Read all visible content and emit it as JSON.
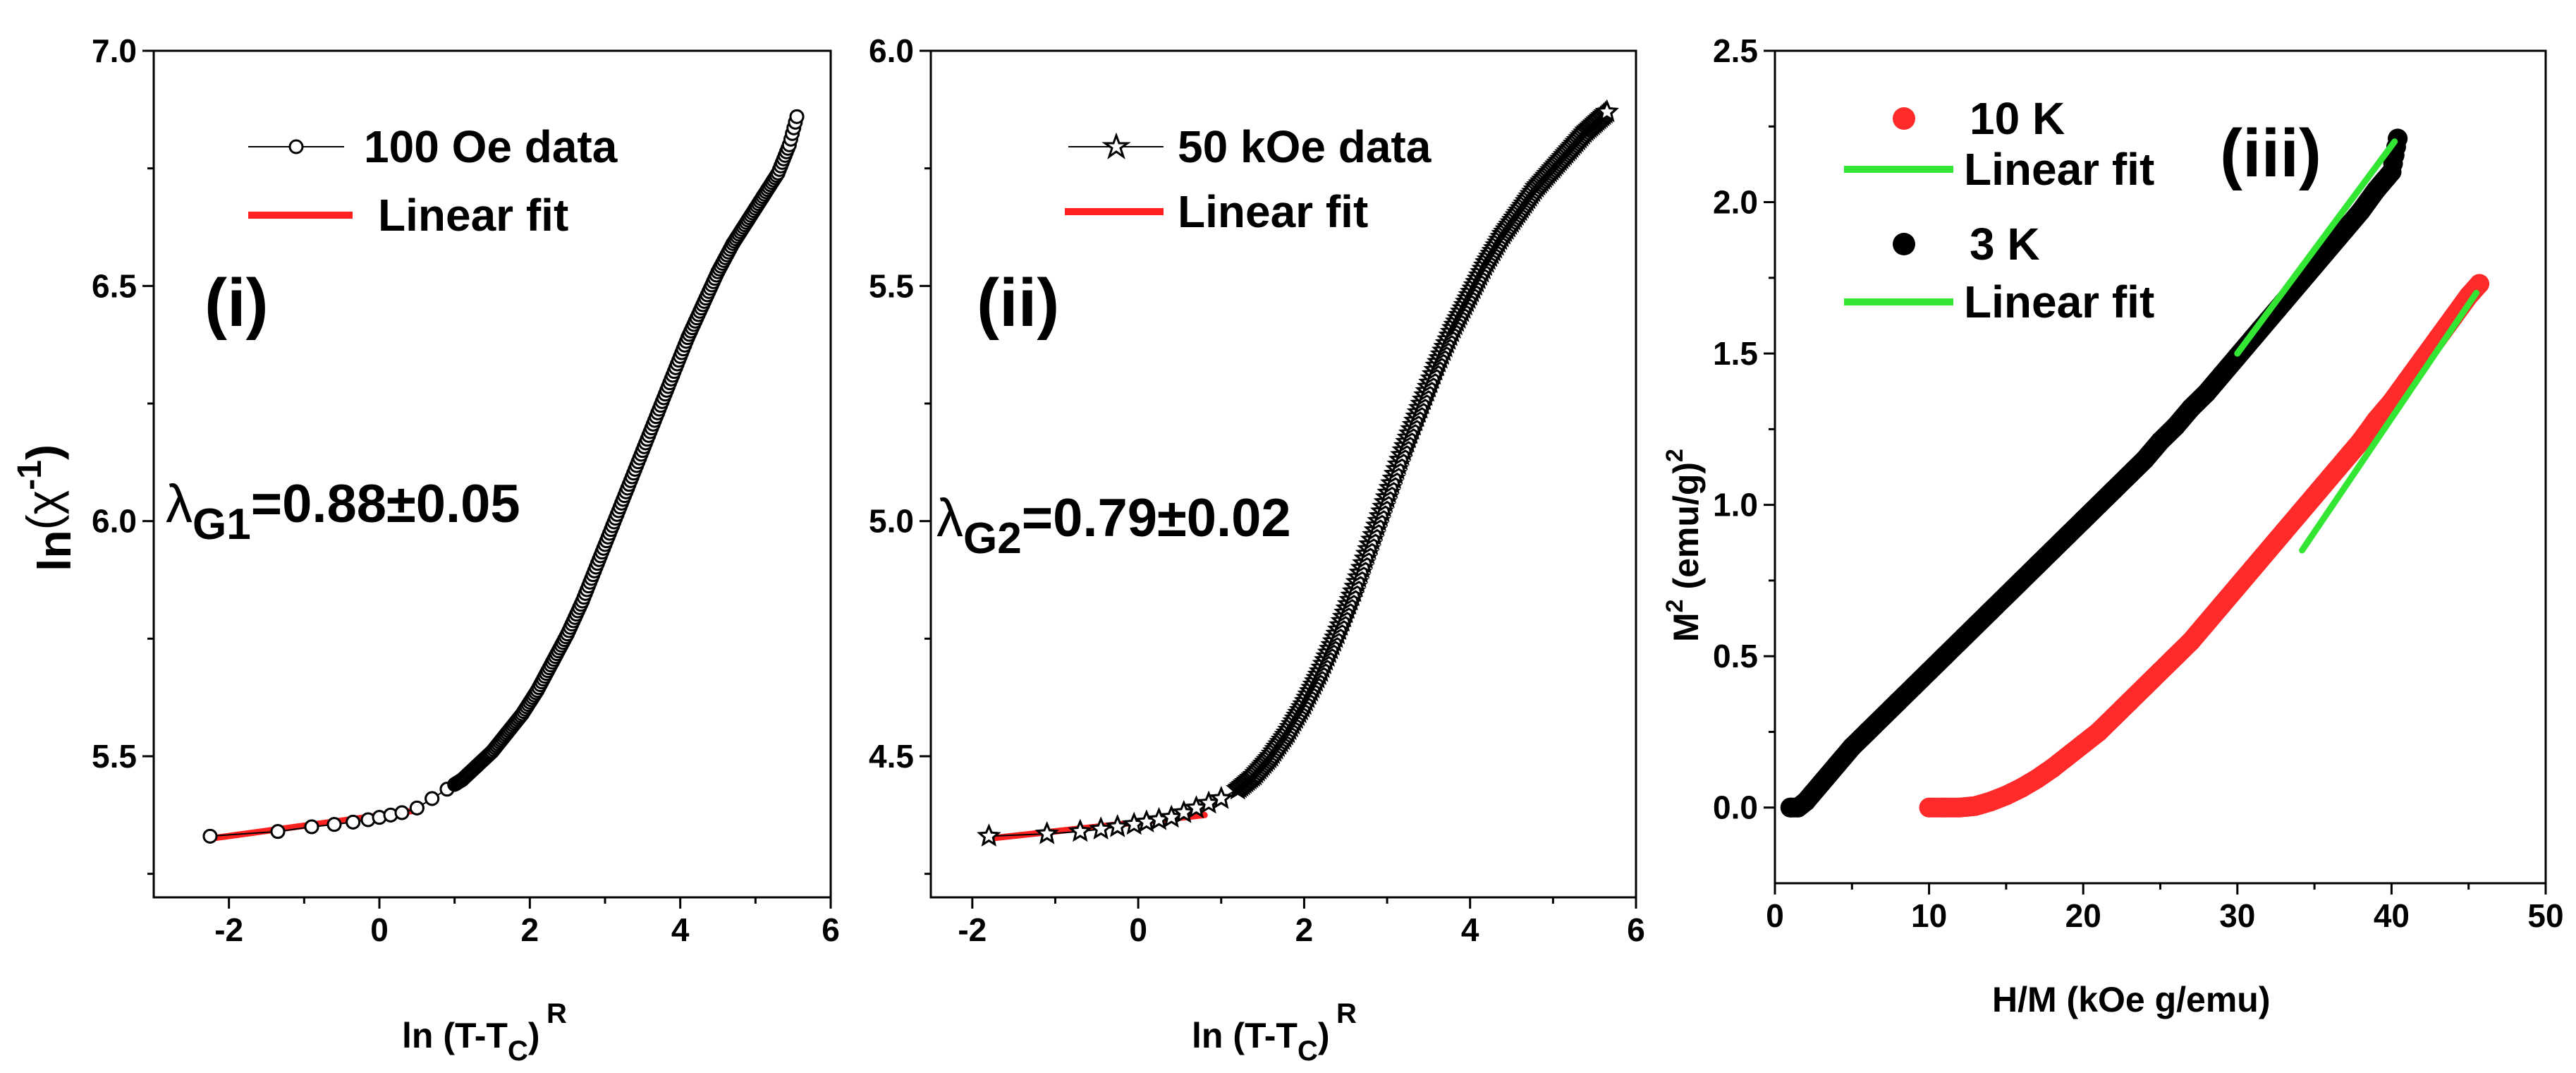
{
  "chart_data": [
    {
      "type": "scatter",
      "panel_label": "(i)",
      "ylabel_main": "ln",
      "ylabel_paren": "(χ",
      "ylabel_sup": "-1",
      "ylabel_close": ")",
      "xlabel_main": "ln (T-T",
      "xlabel_sub": "C",
      "xlabel_sup": "R",
      "xlabel_close": ")",
      "xlim": [
        -3,
        6
      ],
      "ylim": [
        5.2,
        7.0
      ],
      "xticks": [
        -2,
        0,
        2,
        4,
        6
      ],
      "yticks": [
        5.5,
        6.0,
        6.5,
        7.0
      ],
      "xtick_labels": [
        "-2",
        "0",
        "2",
        "4",
        "6"
      ],
      "ytick_labels": [
        "5.5",
        "6.0",
        "6.5",
        "7.0"
      ],
      "legend": [
        {
          "label": "100 Oe data",
          "marker": "open-circle"
        },
        {
          "label": "Linear fit",
          "marker": "line",
          "color": "#ff2020"
        }
      ],
      "annotation_lambda": "λ",
      "annotation_sub": "G1",
      "annotation_value": "=0.88±0.05",
      "series": [
        {
          "name": "100 Oe data",
          "marker": "open-circle",
          "x": [
            -2.25,
            -1.35,
            -0.9,
            -0.6,
            -0.35,
            -0.15,
            0.0,
            0.15,
            0.3,
            0.5,
            0.7,
            0.9,
            1.1,
            1.3,
            1.5,
            1.7,
            1.9,
            2.1,
            2.3,
            2.5,
            2.7,
            2.9,
            3.1,
            3.3,
            3.5,
            3.7,
            3.9,
            4.1,
            4.3,
            4.5,
            4.7,
            4.9,
            5.1,
            5.3,
            5.45,
            5.55
          ],
          "y": [
            5.33,
            5.34,
            5.35,
            5.355,
            5.36,
            5.365,
            5.37,
            5.375,
            5.38,
            5.39,
            5.41,
            5.43,
            5.45,
            5.48,
            5.51,
            5.55,
            5.59,
            5.64,
            5.7,
            5.76,
            5.83,
            5.91,
            5.99,
            6.07,
            6.15,
            6.23,
            6.31,
            6.39,
            6.46,
            6.53,
            6.59,
            6.64,
            6.69,
            6.74,
            6.8,
            6.86
          ]
        },
        {
          "name": "Linear fit",
          "color": "#ff2020",
          "x": [
            -2.25,
            0.5
          ],
          "y": [
            5.325,
            5.385
          ]
        }
      ]
    },
    {
      "type": "scatter",
      "panel_label": "(ii)",
      "xlabel_main": "ln (T-T",
      "xlabel_sub": "C",
      "xlabel_sup": "R",
      "xlabel_close": ")",
      "xlim": [
        -2.5,
        6
      ],
      "ylim": [
        4.2,
        6.0
      ],
      "xticks": [
        -2,
        0,
        2,
        4,
        6
      ],
      "yticks": [
        4.5,
        5.0,
        5.5,
        6.0
      ],
      "xtick_labels": [
        "-2",
        "0",
        "2",
        "4",
        "6"
      ],
      "ytick_labels": [
        "4.5",
        "5.0",
        "5.5",
        "6.0"
      ],
      "legend": [
        {
          "label": "50 kOe data",
          "marker": "open-star"
        },
        {
          "label": "Linear fit",
          "marker": "line",
          "color": "#ff2020"
        }
      ],
      "annotation_lambda": "λ",
      "annotation_sub": "G2",
      "annotation_value": "=0.79±0.02",
      "series": [
        {
          "name": "50 kOe data",
          "marker": "open-star",
          "x": [
            -1.8,
            -1.1,
            -0.7,
            -0.45,
            -0.25,
            -0.05,
            0.1,
            0.25,
            0.4,
            0.55,
            0.7,
            0.85,
            1.0,
            1.2,
            1.4,
            1.6,
            1.8,
            2.0,
            2.2,
            2.4,
            2.6,
            2.8,
            3.0,
            3.2,
            3.4,
            3.6,
            3.8,
            4.0,
            4.2,
            4.4,
            4.6,
            4.8,
            5.0,
            5.2,
            5.4,
            5.65
          ],
          "y": [
            4.33,
            4.335,
            4.34,
            4.345,
            4.35,
            4.355,
            4.36,
            4.365,
            4.37,
            4.38,
            4.39,
            4.4,
            4.41,
            4.43,
            4.46,
            4.5,
            4.55,
            4.61,
            4.68,
            4.76,
            4.85,
            4.95,
            5.05,
            5.15,
            5.24,
            5.33,
            5.41,
            5.48,
            5.55,
            5.61,
            5.66,
            5.71,
            5.75,
            5.79,
            5.83,
            5.87
          ]
        },
        {
          "name": "Linear fit",
          "color": "#ff2020",
          "x": [
            -1.8,
            0.8
          ],
          "y": [
            4.325,
            4.375
          ]
        }
      ]
    },
    {
      "type": "scatter",
      "panel_label": "(iii)",
      "ylabel_main": "M",
      "ylabel_sup": "2",
      "ylabel_rest": " (emu/g)",
      "ylabel_sup2": "2",
      "xlabel": "H/M (kOe g/emu)",
      "xlim": [
        0,
        50
      ],
      "ylim": [
        -0.25,
        2.5
      ],
      "xticks": [
        0,
        10,
        20,
        30,
        40,
        50
      ],
      "yticks": [
        0.0,
        0.5,
        1.0,
        1.5,
        2.0,
        2.5
      ],
      "xtick_labels": [
        "0",
        "10",
        "20",
        "30",
        "40",
        "50"
      ],
      "ytick_labels": [
        "0.0",
        "0.5",
        "1.0",
        "1.5",
        "2.0",
        "2.5"
      ],
      "legend": [
        {
          "label": "10 K",
          "marker": "filled-circle",
          "color": "#ff2a2a"
        },
        {
          "label": "Linear fit",
          "marker": "line",
          "color": "#33e633"
        },
        {
          "label": "3 K",
          "marker": "filled-circle",
          "color": "#000000"
        },
        {
          "label": "Linear fit",
          "marker": "line",
          "color": "#33e633"
        }
      ],
      "series": [
        {
          "name": "10 K",
          "color": "#ff2a2a",
          "x": [
            10,
            11,
            12,
            13,
            14,
            15,
            16,
            17,
            18,
            19,
            20,
            21,
            22,
            23,
            24,
            25,
            26,
            27,
            28,
            29,
            30,
            31,
            32,
            33,
            34,
            35,
            36,
            37,
            38,
            39,
            40,
            41,
            42,
            43,
            44,
            45,
            45.7
          ],
          "y": [
            0.0,
            0.0,
            0.0,
            0.005,
            0.02,
            0.04,
            0.065,
            0.095,
            0.13,
            0.17,
            0.21,
            0.25,
            0.3,
            0.35,
            0.4,
            0.45,
            0.5,
            0.55,
            0.61,
            0.67,
            0.73,
            0.79,
            0.85,
            0.91,
            0.97,
            1.03,
            1.09,
            1.15,
            1.21,
            1.28,
            1.34,
            1.41,
            1.48,
            1.55,
            1.62,
            1.69,
            1.73
          ]
        },
        {
          "name": "Linear fit",
          "color": "#33e633",
          "x": [
            34.2,
            45.5
          ],
          "y": [
            0.85,
            1.7
          ]
        },
        {
          "name": "3 K",
          "color": "#000000",
          "x": [
            1.0,
            1.5,
            2,
            3,
            4,
            5,
            6,
            7,
            8,
            9,
            10,
            11,
            12,
            13,
            14,
            15,
            16,
            17,
            18,
            19,
            20,
            21,
            22,
            23,
            24,
            25,
            26,
            27,
            28,
            29,
            30,
            31,
            32,
            33,
            34,
            35,
            36,
            37,
            38,
            39,
            40,
            40.4
          ],
          "y": [
            0.0,
            0.0,
            0.02,
            0.08,
            0.14,
            0.2,
            0.25,
            0.3,
            0.35,
            0.4,
            0.45,
            0.5,
            0.55,
            0.6,
            0.65,
            0.7,
            0.75,
            0.8,
            0.85,
            0.9,
            0.95,
            1.0,
            1.05,
            1.1,
            1.15,
            1.21,
            1.26,
            1.32,
            1.37,
            1.43,
            1.49,
            1.55,
            1.61,
            1.67,
            1.73,
            1.79,
            1.85,
            1.91,
            1.97,
            2.04,
            2.1,
            2.21
          ]
        },
        {
          "name": "Linear fit",
          "color": "#33e633",
          "x": [
            30.0,
            40.2
          ],
          "y": [
            1.5,
            2.2
          ]
        }
      ]
    }
  ]
}
